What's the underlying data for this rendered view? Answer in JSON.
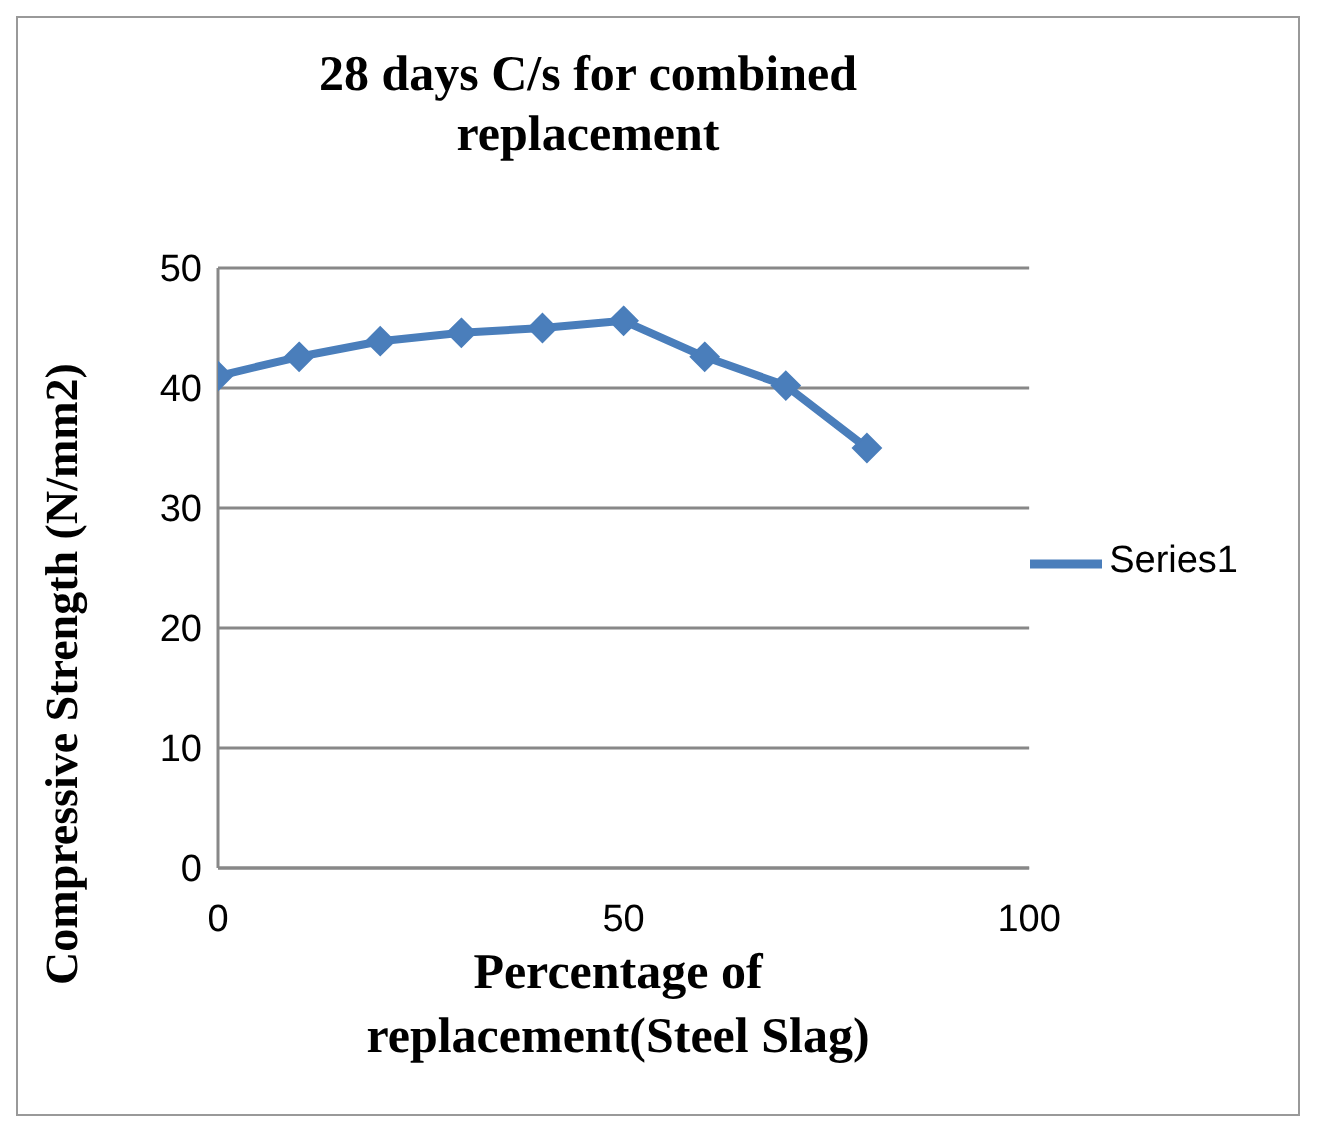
{
  "chart_data": {
    "type": "line",
    "title": "28 days C/s for combined replacement",
    "xlabel": "Percentage of replacement(Steel Slag)",
    "ylabel": "Compressive Strength (N/mm2)",
    "x": [
      0,
      10,
      20,
      30,
      40,
      50,
      60,
      70,
      80
    ],
    "series": [
      {
        "name": "Series1",
        "color": "#4a7ebb",
        "values": [
          41,
          42.6,
          43.9,
          44.6,
          45,
          45.6,
          42.6,
          40.2,
          35
        ]
      }
    ],
    "xlim": [
      0,
      100
    ],
    "xticks": [
      0,
      50,
      100
    ],
    "ylim": [
      0,
      50
    ],
    "yticks": [
      0,
      10,
      20,
      30,
      40,
      50
    ],
    "grid": "y",
    "legend": "right",
    "marker": "diamond",
    "line_style": "solid"
  }
}
